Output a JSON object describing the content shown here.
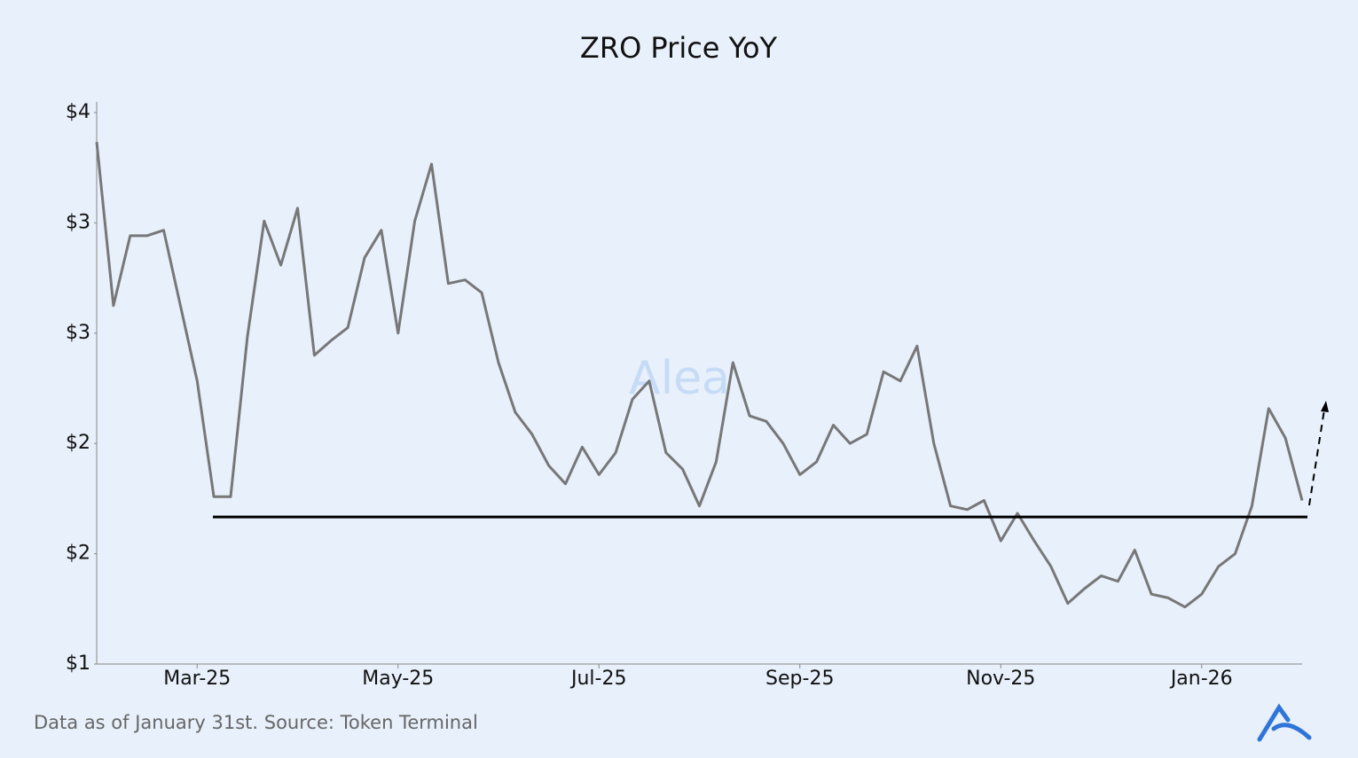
{
  "chart_data": {
    "type": "line",
    "title": "ZRO Price YoY",
    "source": "Data as of January 31st. Source: Token Terminal",
    "watermark": "Alea",
    "categories": [
      null,
      null,
      null,
      null,
      null,
      null,
      "Mar-25",
      null,
      null,
      null,
      null,
      null,
      null,
      null,
      null,
      null,
      null,
      null,
      "May-25",
      null,
      null,
      null,
      null,
      null,
      null,
      null,
      null,
      null,
      null,
      null,
      "Jul-25",
      null,
      null,
      null,
      null,
      null,
      null,
      null,
      null,
      null,
      null,
      null,
      "Sep-25",
      null,
      null,
      null,
      null,
      null,
      null,
      null,
      null,
      null,
      null,
      null,
      "Nov-25",
      null,
      null,
      null,
      null,
      null,
      null,
      null,
      null,
      null,
      null,
      null,
      "Jan-26",
      null,
      null,
      null,
      null,
      null,
      null
    ],
    "series": [
      {
        "name": "ZRO",
        "color": "#777777",
        "values": [
          3.84,
          2.95,
          3.33,
          3.33,
          3.36,
          2.95,
          2.54,
          1.91,
          1.91,
          2.78,
          3.41,
          3.17,
          3.48,
          2.68,
          2.76,
          2.83,
          3.21,
          3.36,
          2.8,
          3.41,
          3.72,
          3.07,
          3.09,
          3.02,
          2.64,
          2.37,
          2.25,
          2.08,
          1.98,
          2.18,
          2.03,
          2.15,
          2.44,
          2.54,
          2.15,
          2.06,
          1.86,
          2.1,
          2.64,
          2.35,
          2.32,
          2.2,
          2.03,
          2.1,
          2.3,
          2.2,
          2.25,
          2.59,
          2.54,
          2.73,
          2.2,
          1.86,
          1.84,
          1.89,
          1.67,
          1.82,
          1.67,
          1.53,
          1.33,
          1.41,
          1.48,
          1.45,
          1.62,
          1.38,
          1.36,
          1.31,
          1.38,
          1.53,
          1.6,
          1.86,
          2.39,
          2.23,
          1.89
        ]
      }
    ],
    "support_value": 1.8,
    "ylim": [
      1,
      4
    ],
    "yticks": [
      {
        "value": 1,
        "label": "$1"
      },
      {
        "value": 1.6,
        "label": "$2"
      },
      {
        "value": 2.2,
        "label": "$2"
      },
      {
        "value": 2.8,
        "label": "$3"
      },
      {
        "value": 3.4,
        "label": "$3"
      },
      {
        "value": 4,
        "label": "$4"
      }
    ],
    "grid": false
  }
}
